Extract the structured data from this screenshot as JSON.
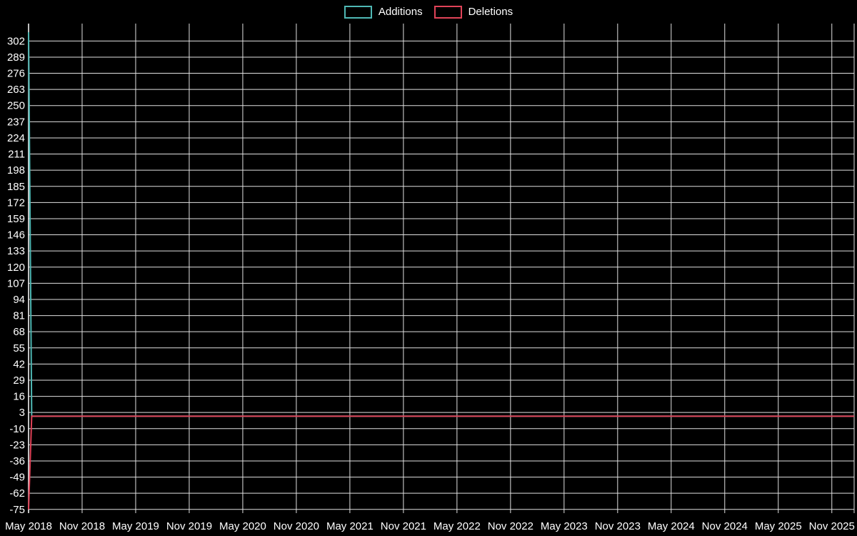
{
  "colors": {
    "background": "#000000",
    "grid": "#e0e0e0",
    "axis": "#ffffff",
    "text": "#ffffff"
  },
  "chart_data": {
    "type": "line",
    "title": "",
    "xlabel": "",
    "ylabel": "",
    "grid": true,
    "legend_position": "top-center",
    "x_unit": "months since May 2018",
    "xlim": [
      0,
      92.5
    ],
    "ylim": [
      -78,
      316
    ],
    "x_ticks": [
      {
        "pos": 0,
        "label": "May 2018"
      },
      {
        "pos": 6,
        "label": "Nov 2018"
      },
      {
        "pos": 12,
        "label": "May 2019"
      },
      {
        "pos": 18,
        "label": "Nov 2019"
      },
      {
        "pos": 24,
        "label": "May 2020"
      },
      {
        "pos": 30,
        "label": "Nov 2020"
      },
      {
        "pos": 36,
        "label": "May 2021"
      },
      {
        "pos": 42,
        "label": "Nov 2021"
      },
      {
        "pos": 48,
        "label": "May 2022"
      },
      {
        "pos": 54,
        "label": "Nov 2022"
      },
      {
        "pos": 60,
        "label": "May 2023"
      },
      {
        "pos": 66,
        "label": "Nov 2023"
      },
      {
        "pos": 72,
        "label": "May 2024"
      },
      {
        "pos": 78,
        "label": "Nov 2024"
      },
      {
        "pos": 84,
        "label": "May 2025"
      },
      {
        "pos": 90,
        "label": "Nov 2025"
      }
    ],
    "y_ticks": [
      302,
      289,
      276,
      263,
      250,
      237,
      224,
      211,
      198,
      185,
      172,
      159,
      146,
      133,
      120,
      107,
      94,
      81,
      68,
      55,
      42,
      29,
      16,
      3,
      -10,
      -23,
      -36,
      -49,
      -62,
      -75
    ],
    "series": [
      {
        "name": "Additions",
        "color": "#4fb8b4",
        "points": [
          [
            0,
            309
          ],
          [
            0.35,
            0
          ],
          [
            92.5,
            0
          ]
        ]
      },
      {
        "name": "Deletions",
        "color": "#e04358",
        "points": [
          [
            0,
            -75
          ],
          [
            0.35,
            0
          ],
          [
            92.5,
            0
          ]
        ]
      }
    ]
  }
}
